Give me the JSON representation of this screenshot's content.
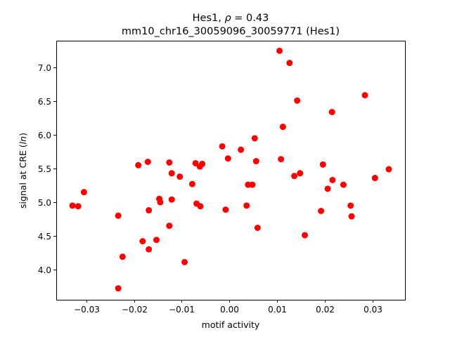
{
  "chart_data": {
    "type": "scatter",
    "title_line1_prefix": "Hes1, ",
    "title_line1_rho": "ρ",
    "title_line1_suffix": " = 0.43",
    "title_line2": "mm10_chr16_30059096_30059771 (Hes1)",
    "xlabel": "motif activity",
    "ylabel_prefix": "signal at CRE (",
    "ylabel_ln": "ln",
    "ylabel_suffix": ")",
    "xlim": [
      -0.0363,
      0.0368
    ],
    "ylim": [
      3.55,
      7.4
    ],
    "grid": false,
    "marker_color": "#ff0000",
    "x_ticks": [
      -0.03,
      -0.02,
      -0.01,
      0.0,
      0.01,
      0.02,
      0.03
    ],
    "x_tick_labels": [
      "−0.03",
      "−0.02",
      "−0.01",
      "0.00",
      "0.01",
      "0.02",
      "0.03"
    ],
    "y_ticks": [
      4.0,
      4.5,
      5.0,
      5.5,
      6.0,
      6.5,
      7.0
    ],
    "y_tick_labels": [
      "4.0",
      "4.5",
      "5.0",
      "5.5",
      "6.0",
      "6.5",
      "7.0"
    ],
    "points": [
      {
        "x": -0.0329,
        "y": 4.95
      },
      {
        "x": -0.0317,
        "y": 4.94
      },
      {
        "x": -0.0305,
        "y": 5.15
      },
      {
        "x": -0.0233,
        "y": 4.8
      },
      {
        "x": -0.0233,
        "y": 3.72
      },
      {
        "x": -0.0224,
        "y": 4.19
      },
      {
        "x": -0.0191,
        "y": 5.55
      },
      {
        "x": -0.0182,
        "y": 4.42
      },
      {
        "x": -0.0171,
        "y": 5.6
      },
      {
        "x": -0.0169,
        "y": 4.88
      },
      {
        "x": -0.0169,
        "y": 4.3
      },
      {
        "x": -0.0153,
        "y": 4.44
      },
      {
        "x": -0.0147,
        "y": 5.05
      },
      {
        "x": -0.0145,
        "y": 5.0
      },
      {
        "x": -0.0126,
        "y": 5.59
      },
      {
        "x": -0.0126,
        "y": 4.65
      },
      {
        "x": -0.0121,
        "y": 5.43
      },
      {
        "x": -0.0121,
        "y": 5.04
      },
      {
        "x": -0.0104,
        "y": 5.38
      },
      {
        "x": -0.0094,
        "y": 4.11
      },
      {
        "x": -0.0078,
        "y": 5.27
      },
      {
        "x": -0.0071,
        "y": 5.58
      },
      {
        "x": -0.0069,
        "y": 4.98
      },
      {
        "x": -0.0062,
        "y": 5.53
      },
      {
        "x": -0.0061,
        "y": 4.94
      },
      {
        "x": -0.0057,
        "y": 5.57
      },
      {
        "x": -0.0015,
        "y": 5.83
      },
      {
        "x": -0.0008,
        "y": 4.89
      },
      {
        "x": -0.0003,
        "y": 5.65
      },
      {
        "x": 0.0024,
        "y": 5.78
      },
      {
        "x": 0.0036,
        "y": 4.95
      },
      {
        "x": 0.0039,
        "y": 5.26
      },
      {
        "x": 0.0048,
        "y": 5.26
      },
      {
        "x": 0.0053,
        "y": 5.95
      },
      {
        "x": 0.0056,
        "y": 5.61
      },
      {
        "x": 0.0059,
        "y": 4.62
      },
      {
        "x": 0.0105,
        "y": 7.25
      },
      {
        "x": 0.0108,
        "y": 5.64
      },
      {
        "x": 0.0112,
        "y": 6.12
      },
      {
        "x": 0.0126,
        "y": 7.07
      },
      {
        "x": 0.0136,
        "y": 5.39
      },
      {
        "x": 0.0142,
        "y": 6.51
      },
      {
        "x": 0.0148,
        "y": 5.43
      },
      {
        "x": 0.0158,
        "y": 4.51
      },
      {
        "x": 0.0192,
        "y": 4.87
      },
      {
        "x": 0.0196,
        "y": 5.56
      },
      {
        "x": 0.0206,
        "y": 5.2
      },
      {
        "x": 0.0215,
        "y": 6.34
      },
      {
        "x": 0.0216,
        "y": 5.33
      },
      {
        "x": 0.0239,
        "y": 5.26
      },
      {
        "x": 0.0254,
        "y": 4.95
      },
      {
        "x": 0.0256,
        "y": 4.79
      },
      {
        "x": 0.0284,
        "y": 6.59
      },
      {
        "x": 0.0305,
        "y": 5.36
      },
      {
        "x": 0.0334,
        "y": 5.49
      }
    ]
  }
}
